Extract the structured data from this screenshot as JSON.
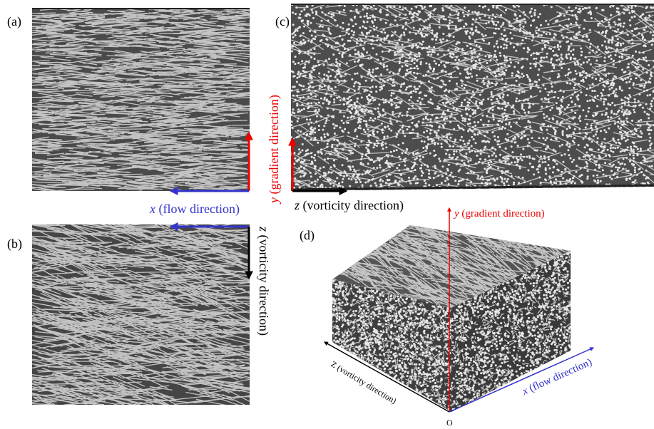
{
  "panels": [
    {
      "label": "(a)",
      "axes": [
        {
          "var": "x",
          "text": "(flow direction)"
        }
      ]
    },
    {
      "label": "(b)",
      "axes": [
        {
          "var": "z",
          "text": "(vorticity direction)"
        }
      ]
    },
    {
      "label": "(c)",
      "axes": [
        {
          "var": "y",
          "text": "(gradient direction)"
        },
        {
          "var": "z",
          "text": "(vorticity direction)"
        }
      ]
    },
    {
      "label": "(d)",
      "axes": [
        {
          "var": "y",
          "text": "(gradient direction)"
        },
        {
          "var": "x",
          "text": "(flow direction)"
        },
        {
          "var": "Z",
          "text": "(vorticity direction)"
        }
      ],
      "origin": "O"
    }
  ]
}
